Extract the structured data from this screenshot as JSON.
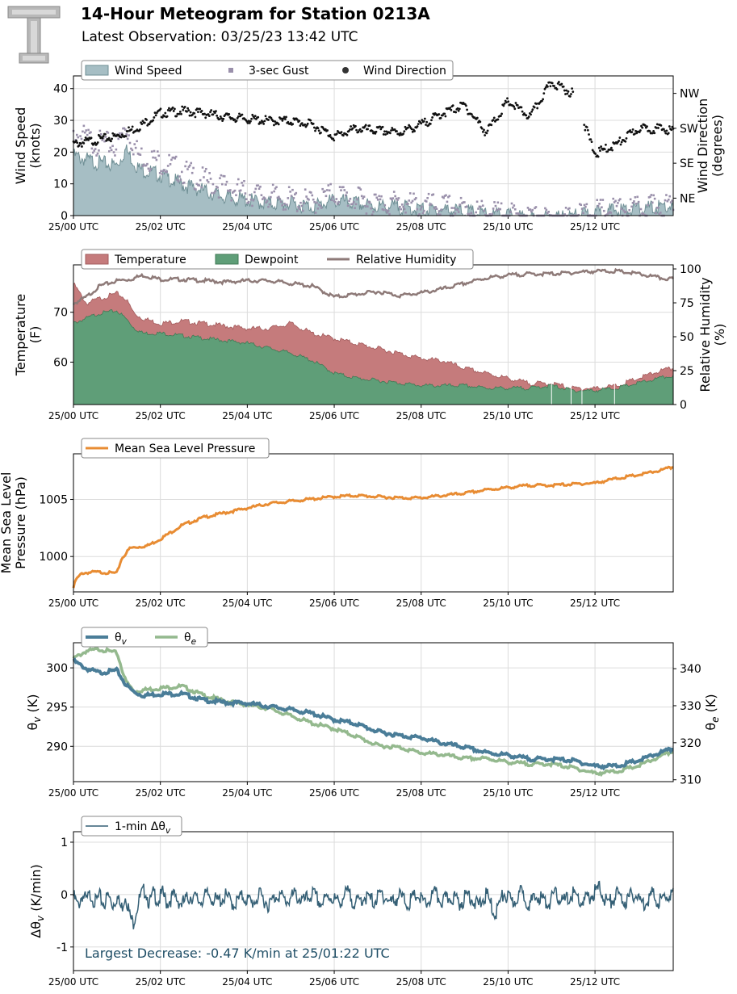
{
  "header": {
    "title": "14-Hour Meteogram for Station 0213A",
    "subtitle": "Latest Observation: 03/25/23 13:42 UTC"
  },
  "colors": {
    "wind_fill": "#a6bec4",
    "wind_line": "#6f8f95",
    "gust": "#9a90ab",
    "direction": "#111111",
    "temperature": "#c57b7c",
    "dewpoint": "#5f9e78",
    "rh": "#8e7a78",
    "mslp": "#e88c33",
    "theta_v": "#4a7d98",
    "theta_e": "#94b98e",
    "delta": "#345f75",
    "annotation": "#1f4e66"
  },
  "chart_data": [
    {
      "type": "area",
      "id": "wind",
      "ylabel": "Wind Speed\n(knots)",
      "ylabel2": "Wind Direction\n(degrees)",
      "ylim": [
        0,
        44
      ],
      "yticks": [
        0,
        10,
        20,
        30,
        40
      ],
      "y2ticks": [
        "NE",
        "SE",
        "SW",
        "NW"
      ],
      "y2tick_values": [
        45,
        135,
        225,
        315
      ],
      "y2lim": [
        0,
        360
      ],
      "xlim": [
        0,
        13.8
      ],
      "xticks": [
        0,
        2,
        4,
        6,
        8,
        10,
        12
      ],
      "xticklabels": [
        "25/00 UTC",
        "25/02 UTC",
        "25/04 UTC",
        "25/06 UTC",
        "25/08 UTC",
        "25/10 UTC",
        "25/12 UTC"
      ],
      "legend": [
        "Wind Speed",
        "3-sec Gust",
        "Wind Direction"
      ],
      "grid": true,
      "series": [
        {
          "name": "Wind Speed",
          "kind": "area",
          "x": [
            0,
            0.5,
            1.0,
            1.2,
            1.5,
            2.0,
            2.5,
            3.0,
            3.5,
            4.0,
            4.5,
            5.0,
            5.5,
            6.0,
            6.5,
            7.0,
            7.5,
            8.0,
            8.5,
            9.0,
            9.5,
            10.0,
            10.5,
            11.0,
            11.5,
            12.0,
            12.5,
            13.0,
            13.5,
            13.8
          ],
          "y": [
            20,
            18,
            17,
            22,
            16,
            14,
            11,
            9,
            7,
            6,
            5,
            5,
            4,
            6,
            5,
            4,
            4,
            3,
            3,
            2.5,
            1.5,
            1,
            0.5,
            0,
            1,
            2,
            3,
            3,
            4,
            4
          ]
        },
        {
          "name": "3-sec Gust",
          "kind": "scatter",
          "x": [
            0,
            0.5,
            1.0,
            1.2,
            1.5,
            2.0,
            2.5,
            3.0,
            3.5,
            4.0,
            4.5,
            5.0,
            5.5,
            6.0,
            6.5,
            7.0,
            7.5,
            8.0,
            8.5,
            9.0,
            9.5,
            10.0,
            10.5,
            11.0,
            11.5,
            12.0,
            12.5,
            13.0,
            13.5,
            13.8
          ],
          "y": [
            28,
            25,
            24,
            30,
            21,
            19,
            16,
            13,
            11,
            9,
            8,
            7,
            6,
            9,
            7,
            6,
            6,
            5,
            5,
            4,
            3,
            2,
            1.5,
            0.5,
            2,
            3,
            4,
            4,
            5,
            5
          ]
        },
        {
          "name": "Wind Direction",
          "kind": "scatter",
          "x": [
            0,
            0.5,
            1.0,
            1.5,
            2.0,
            2.5,
            3.0,
            3.5,
            4.0,
            4.5,
            5.0,
            5.5,
            6.0,
            6.5,
            7.0,
            7.5,
            8.0,
            8.5,
            9.0,
            9.5,
            10.0,
            10.5,
            11.0,
            11.5,
            12.0,
            12.5,
            13.0,
            13.5,
            13.8
          ],
          "y": [
            190,
            200,
            210,
            235,
            270,
            275,
            270,
            260,
            255,
            250,
            250,
            240,
            210,
            230,
            225,
            220,
            240,
            270,
            290,
            220,
            300,
            260,
            350,
            320,
            165,
            190,
            230,
            230,
            225
          ]
        }
      ]
    },
    {
      "type": "area",
      "id": "temp",
      "ylabel": "Temperature\n(F)",
      "ylabel2": "Relative Humidity\n(%)",
      "ylim": [
        51.5,
        79.5
      ],
      "yticks": [
        60,
        70
      ],
      "y2ticks": [
        0,
        25,
        50,
        75,
        100
      ],
      "y2lim": [
        0,
        103
      ],
      "xlim": [
        0,
        13.8
      ],
      "xticks": [
        0,
        2,
        4,
        6,
        8,
        10,
        12
      ],
      "xticklabels": [
        "25/00 UTC",
        "25/02 UTC",
        "25/04 UTC",
        "25/06 UTC",
        "25/08 UTC",
        "25/10 UTC",
        "25/12 UTC"
      ],
      "legend": [
        "Temperature",
        "Dewpoint",
        "Relative Humidity"
      ],
      "grid": true,
      "series": [
        {
          "name": "Temperature",
          "kind": "area",
          "x": [
            0,
            0.3,
            0.6,
            1.0,
            1.2,
            1.4,
            1.6,
            2.0,
            2.5,
            3.0,
            3.5,
            4.0,
            4.5,
            5.0,
            5.5,
            6.0,
            6.5,
            7.0,
            7.5,
            8.0,
            8.5,
            9.0,
            9.5,
            10.0,
            10.5,
            11.0,
            11.5,
            12.0,
            12.5,
            13.0,
            13.5,
            13.8
          ],
          "y": [
            76,
            72,
            73,
            74,
            73,
            70,
            69,
            68,
            68.5,
            68,
            67.5,
            67,
            67,
            68,
            66,
            65,
            64,
            63,
            62,
            61,
            60.5,
            59,
            58,
            57,
            56,
            56,
            55,
            55,
            55.5,
            57,
            58.5,
            59
          ]
        },
        {
          "name": "Dewpoint",
          "kind": "area",
          "x": [
            0,
            0.3,
            0.6,
            1.0,
            1.2,
            1.4,
            1.6,
            2.0,
            2.5,
            3.0,
            3.5,
            4.0,
            4.5,
            5.0,
            5.5,
            6.0,
            6.5,
            7.0,
            7.5,
            8.0,
            8.5,
            9.0,
            9.5,
            10.0,
            10.5,
            11.0,
            11.5,
            12.0,
            12.5,
            13.0,
            13.5,
            13.8
          ],
          "y": [
            68,
            69,
            70,
            70.5,
            69,
            67,
            66,
            66,
            65.5,
            65,
            64.5,
            64,
            63,
            62,
            60.5,
            58,
            57,
            56.5,
            56,
            55.5,
            55.5,
            55.5,
            55,
            55,
            55,
            55.5,
            54.5,
            54.5,
            55,
            56,
            57,
            57.5
          ]
        },
        {
          "name": "Relative Humidity",
          "kind": "line",
          "x": [
            0,
            0.3,
            0.6,
            1.0,
            1.3,
            1.6,
            2.0,
            2.5,
            3.0,
            3.5,
            4.0,
            4.5,
            5.0,
            5.5,
            6.0,
            6.5,
            7.0,
            7.5,
            8.0,
            8.5,
            9.0,
            9.5,
            10.0,
            10.5,
            11.0,
            11.5,
            12.0,
            12.5,
            13.0,
            13.5,
            13.8
          ],
          "y": [
            75,
            80,
            88,
            92,
            93,
            96,
            93,
            93,
            92,
            91,
            92,
            92,
            90,
            88,
            80,
            82,
            84,
            81,
            83,
            86,
            90,
            94,
            96,
            97,
            97,
            98,
            99,
            99,
            97,
            94,
            93
          ]
        }
      ]
    },
    {
      "type": "line",
      "id": "mslp",
      "ylabel": "Mean Sea Level\nPressure (hPa)",
      "ylim": [
        996.9,
        1009.0
      ],
      "yticks": [
        1000,
        1005
      ],
      "xlim": [
        0,
        13.8
      ],
      "xticks": [
        0,
        2,
        4,
        6,
        8,
        10,
        12
      ],
      "xticklabels": [
        "25/00 UTC",
        "25/02 UTC",
        "25/04 UTC",
        "25/06 UTC",
        "25/08 UTC",
        "25/10 UTC",
        "25/12 UTC"
      ],
      "legend": [
        "Mean Sea Level Pressure"
      ],
      "grid": true,
      "series": [
        {
          "name": "Mean Sea Level Pressure",
          "x": [
            0,
            0.05,
            0.2,
            0.5,
            1.0,
            1.1,
            1.3,
            1.7,
            2.0,
            2.5,
            3.0,
            3.5,
            4.0,
            4.5,
            5.0,
            5.5,
            6.0,
            6.5,
            7.0,
            7.5,
            8.0,
            8.5,
            9.0,
            9.5,
            10.0,
            10.5,
            11.0,
            11.5,
            12.0,
            12.5,
            13.0,
            13.5,
            13.8
          ],
          "y": [
            997.3,
            998.0,
            998.6,
            998.7,
            998.6,
            999.8,
            1000.8,
            1001.0,
            1001.6,
            1002.8,
            1003.5,
            1003.9,
            1004.3,
            1004.7,
            1004.9,
            1005.1,
            1005.3,
            1005.4,
            1005.3,
            1005.2,
            1005.2,
            1005.4,
            1005.6,
            1005.9,
            1006.1,
            1006.3,
            1006.3,
            1006.4,
            1006.5,
            1006.9,
            1007.2,
            1007.6,
            1007.9
          ]
        }
      ]
    },
    {
      "type": "line",
      "id": "theta",
      "ylabel": "θ_v (K)",
      "ylabel2": "θ_e (K)",
      "ylim": [
        285.5,
        303.2
      ],
      "yticks": [
        290,
        295,
        300
      ],
      "y2lim": [
        309.5,
        347
      ],
      "y2ticks": [
        310,
        320,
        330,
        340
      ],
      "xlim": [
        0,
        13.8
      ],
      "xticks": [
        0,
        2,
        4,
        6,
        8,
        10,
        12
      ],
      "xticklabels": [
        "25/00 UTC",
        "25/02 UTC",
        "25/04 UTC",
        "25/06 UTC",
        "25/08 UTC",
        "25/10 UTC",
        "25/12 UTC"
      ],
      "legend": [
        "θ_v",
        "θ_e"
      ],
      "grid": true,
      "series": [
        {
          "name": "θ_v",
          "axis": "left",
          "x": [
            0,
            0.3,
            0.6,
            1.0,
            1.2,
            1.4,
            1.6,
            2.0,
            2.5,
            3.0,
            3.5,
            4.0,
            4.5,
            5.0,
            5.5,
            6.0,
            6.5,
            7.0,
            7.5,
            8.0,
            8.5,
            9.0,
            9.5,
            10.0,
            10.5,
            11.0,
            11.5,
            12.0,
            12.5,
            13.0,
            13.5,
            13.8
          ],
          "y": [
            301,
            300,
            299.5,
            299.8,
            298,
            297,
            296.6,
            296.8,
            296.8,
            296,
            295.7,
            295.6,
            295.2,
            294.8,
            294.3,
            293.5,
            293,
            292,
            291.5,
            291.2,
            290.5,
            290,
            289.3,
            289,
            288.5,
            288.5,
            288.3,
            287.6,
            287.6,
            288.3,
            289.3,
            289.8
          ]
        },
        {
          "name": "θ_e",
          "axis": "right",
          "x": [
            0,
            0.3,
            0.6,
            1.0,
            1.2,
            1.4,
            1.6,
            2.0,
            2.5,
            3.0,
            3.5,
            4.0,
            4.5,
            5.0,
            5.5,
            6.0,
            6.5,
            7.0,
            7.5,
            8.0,
            8.5,
            9.0,
            9.5,
            10.0,
            10.5,
            11.0,
            11.5,
            12.0,
            12.5,
            13.0,
            13.5,
            13.8
          ],
          "y": [
            343,
            345,
            345.5,
            344.5,
            337,
            334,
            334.5,
            335,
            335.5,
            333,
            331.5,
            330.5,
            329.5,
            327.5,
            325.5,
            324,
            322,
            319.5,
            319,
            317.5,
            317,
            316,
            316,
            315,
            314.5,
            314.5,
            313.5,
            312,
            312.5,
            314,
            316.5,
            318
          ]
        }
      ]
    },
    {
      "type": "line",
      "id": "delta",
      "ylabel": "Δθ_v (K/min)",
      "ylim": [
        -1.45,
        1.2
      ],
      "yticks": [
        -1,
        0,
        1
      ],
      "xlim": [
        0,
        13.8
      ],
      "xticks": [
        0,
        2,
        4,
        6,
        8,
        10,
        12
      ],
      "xticklabels": [
        "25/00 UTC",
        "25/02 UTC",
        "25/04 UTC",
        "25/06 UTC",
        "25/08 UTC",
        "25/10 UTC",
        "25/12 UTC"
      ],
      "legend": [
        "1-min Δθ_v"
      ],
      "annotation": "Largest Decrease: -0.47 K/min at 25/01:22 UTC",
      "grid": true,
      "series": [
        {
          "name": "1-min Δθ_v",
          "x": [
            0,
            0.1,
            0.2,
            0.3,
            0.4,
            0.5,
            0.6,
            0.7,
            0.8,
            0.9,
            1.0,
            1.1,
            1.2,
            1.3,
            1.37,
            1.45,
            1.55,
            1.65,
            1.75,
            1.85,
            1.95,
            2.05,
            2.15,
            2.3,
            2.5,
            2.7,
            2.9,
            3.1,
            3.3,
            3.5,
            3.7,
            3.9,
            4.1,
            4.3,
            4.5,
            4.7,
            4.9,
            5.1,
            5.3,
            5.5,
            5.7,
            5.9,
            6.1,
            6.3,
            6.5,
            6.7,
            6.9,
            7.1,
            7.3,
            7.5,
            7.7,
            7.9,
            8.1,
            8.3,
            8.5,
            8.7,
            8.9,
            9.1,
            9.3,
            9.5,
            9.7,
            9.9,
            10.1,
            10.3,
            10.5,
            10.7,
            10.9,
            11.1,
            11.3,
            11.5,
            11.7,
            11.9,
            12.1,
            12.3,
            12.5,
            12.7,
            12.9,
            13.1,
            13.3,
            13.5,
            13.7,
            13.8
          ],
          "y": [
            0.05,
            -0.15,
            0.08,
            -0.05,
            0.1,
            -0.08,
            0.04,
            -0.1,
            0.06,
            -0.12,
            0.05,
            -0.2,
            0.1,
            -0.35,
            -0.47,
            -0.2,
            0.05,
            0.18,
            -0.1,
            0.12,
            -0.05,
            0.1,
            -0.08,
            0.05,
            -0.1,
            0.06,
            -0.05,
            0.08,
            -0.06,
            0.04,
            -0.1,
            0.05,
            -0.08,
            0.06,
            -0.12,
            0.1,
            -0.05,
            0.08,
            -0.06,
            0.1,
            -0.1,
            0.06,
            -0.08,
            0.12,
            -0.1,
            0.05,
            -0.06,
            0.1,
            -0.08,
            0.06,
            -0.1,
            0.08,
            -0.12,
            0.1,
            -0.06,
            0.05,
            -0.08,
            0.1,
            -0.15,
            0.08,
            -0.3,
            0.1,
            -0.08,
            0.12,
            -0.1,
            0.06,
            -0.1,
            0.08,
            -0.06,
            0.1,
            -0.08,
            0.05,
            0.2,
            -0.1,
            0.08,
            -0.05,
            0.1,
            -0.1,
            0.08,
            -0.06,
            0.1,
            0.05
          ]
        }
      ]
    }
  ]
}
